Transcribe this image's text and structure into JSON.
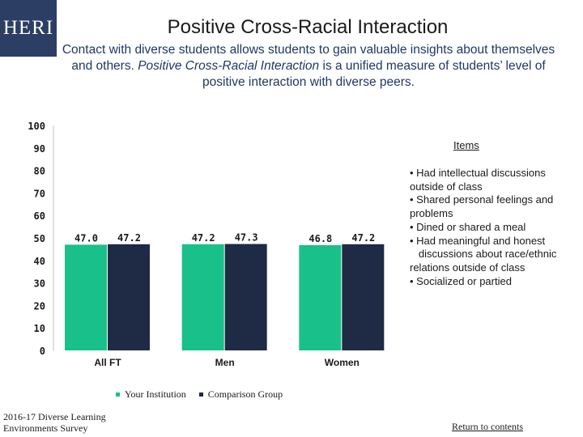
{
  "logo": {
    "text": "HERI"
  },
  "header": {
    "title": "Positive Cross-Racial Interaction",
    "subtitle_part1": "Contact with diverse students allows students to gain valuable insights about themselves and others. ",
    "subtitle_italic": "Positive Cross-Racial Interaction",
    "subtitle_part2": " is a unified measure of students’ level of positive interaction with diverse peers."
  },
  "chart_data": {
    "type": "bar",
    "title": "Positive Cross-Racial Interaction",
    "categories": [
      "All FT",
      "Men",
      "Women"
    ],
    "series": [
      {
        "name": "Your Institution",
        "values": [
          47.0,
          47.2,
          46.8
        ],
        "labels": [
          "47.0",
          "47.2",
          "46.8"
        ],
        "color": "#19c08a"
      },
      {
        "name": "Comparison Group",
        "values": [
          47.2,
          47.3,
          47.2
        ],
        "labels": [
          "47.2",
          "47.3",
          "47.2"
        ],
        "color": "#1f2a44"
      }
    ],
    "ylim": [
      0,
      100
    ],
    "yticks": [
      0,
      10,
      20,
      30,
      40,
      50,
      60,
      70,
      80,
      90,
      100
    ],
    "xlabel": "",
    "ylabel": "",
    "grid": false,
    "legend": "bottom"
  },
  "items": {
    "title": "Items",
    "list": [
      "• Had intellectual discussions outside of class",
      "• Shared personal feelings and problems",
      "• Dined or shared a meal",
      "• Had meaningful and honest",
      "   discussions about race/ethnic relations outside of class",
      "• Socialized or partied"
    ]
  },
  "legend": {
    "your_institution": "Your Institution",
    "comparison_group": "Comparison Group"
  },
  "footer": {
    "source": "2016-17 Diverse Learning Environments Survey",
    "return_link": "Return to contents"
  },
  "colors": {
    "your_institution": "#19c08a",
    "comparison_group": "#1f2a44",
    "logo_bg": "#2c3e63",
    "subtitle": "#1f3864"
  }
}
